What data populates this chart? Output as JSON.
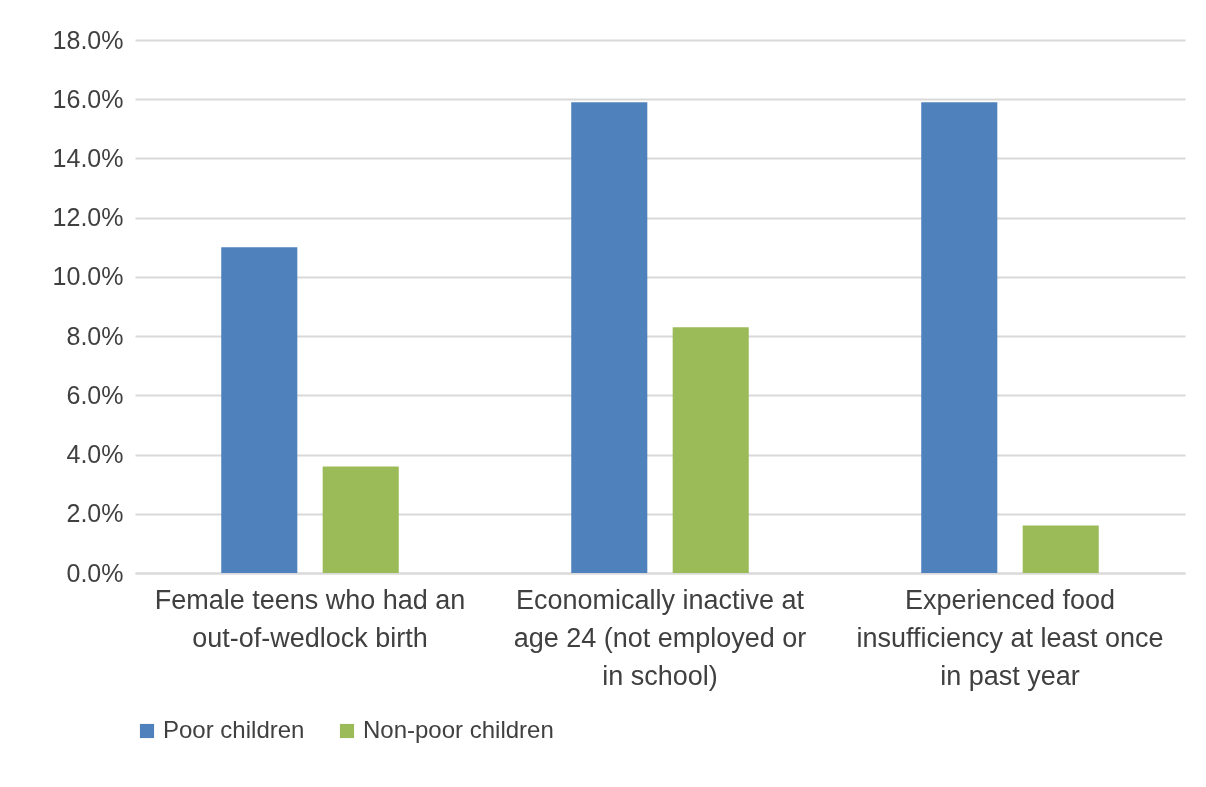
{
  "chart_data": {
    "type": "bar",
    "categories": [
      "Female teens who had an out-of-wedlock birth",
      "Economically inactive at age 24 (not employed or in school)",
      "Experienced food insufficiency at least once in past year"
    ],
    "series": [
      {
        "name": "Poor children",
        "color": "#4f81bd",
        "values": [
          11.0,
          15.9,
          15.9
        ]
      },
      {
        "name": "Non-poor children",
        "color": "#9bbb59",
        "values": [
          3.6,
          8.3,
          1.6
        ]
      }
    ],
    "ylim": [
      0,
      18
    ],
    "yticks": [
      {
        "value": 0,
        "label": "0.0%"
      },
      {
        "value": 2,
        "label": "2.0%"
      },
      {
        "value": 4,
        "label": "4.0%"
      },
      {
        "value": 6,
        "label": "6.0%"
      },
      {
        "value": 8,
        "label": "8.0%"
      },
      {
        "value": 10,
        "label": "10.0%"
      },
      {
        "value": 12,
        "label": "12.0%"
      },
      {
        "value": 14,
        "label": "14.0%"
      },
      {
        "value": 16,
        "label": "16.0%"
      },
      {
        "value": 18,
        "label": "18.0%"
      }
    ],
    "grid": "y",
    "legend": "bottom"
  }
}
